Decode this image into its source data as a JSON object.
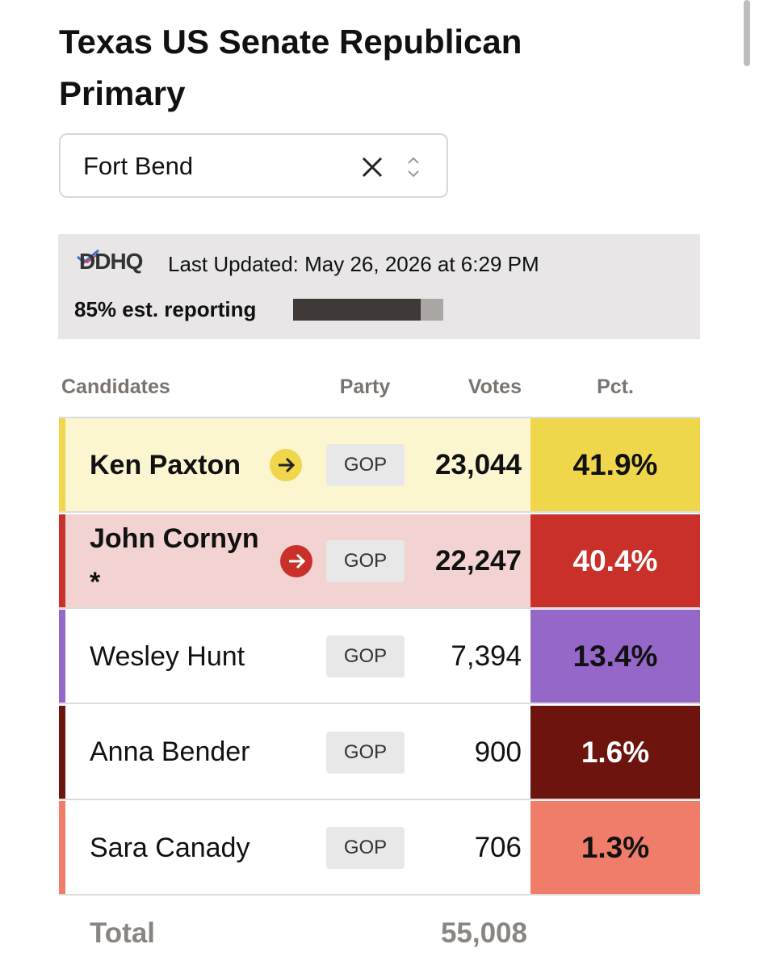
{
  "header": {
    "title": "Texas US Senate Republican Primary"
  },
  "filter": {
    "county": "Fort Bend"
  },
  "status": {
    "logo": "DDHQ",
    "updated": "Last Updated: May 26, 2026 at 6:29 PM",
    "reporting_text": "85% est. reporting",
    "reporting_value": 85
  },
  "table": {
    "columns": [
      "Candidates",
      "Party",
      "Votes",
      "Pct."
    ],
    "rows": [
      {
        "name": "Ken Paxton",
        "party": "GOP",
        "votes": "23,044",
        "pct": "41.9%",
        "color": "#efd64a",
        "row_bg": "#fbf5d0",
        "pct_text": "#111111",
        "bold": true,
        "arrow": true
      },
      {
        "name": "John Cornyn *",
        "party": "GOP",
        "votes": "22,247",
        "pct": "40.4%",
        "color": "#c9302a",
        "row_bg": "#f2d3d1",
        "pct_text": "#ffffff",
        "bold": true,
        "arrow": true
      },
      {
        "name": "Wesley Hunt",
        "party": "GOP",
        "votes": "7,394",
        "pct": "13.4%",
        "color": "#9467c9",
        "row_bg": "#ffffff",
        "pct_text": "#111111",
        "bold": false,
        "arrow": false
      },
      {
        "name": "Anna Bender",
        "party": "GOP",
        "votes": "900",
        "pct": "1.6%",
        "color": "#6d140e",
        "row_bg": "#ffffff",
        "pct_text": "#ffffff",
        "bold": false,
        "arrow": false
      },
      {
        "name": "Sara Canady",
        "party": "GOP",
        "votes": "706",
        "pct": "1.3%",
        "color": "#ef7d69",
        "row_bg": "#ffffff",
        "pct_text": "#111111",
        "bold": false,
        "arrow": false
      }
    ],
    "total": {
      "label": "Total",
      "votes": "55,008"
    }
  }
}
